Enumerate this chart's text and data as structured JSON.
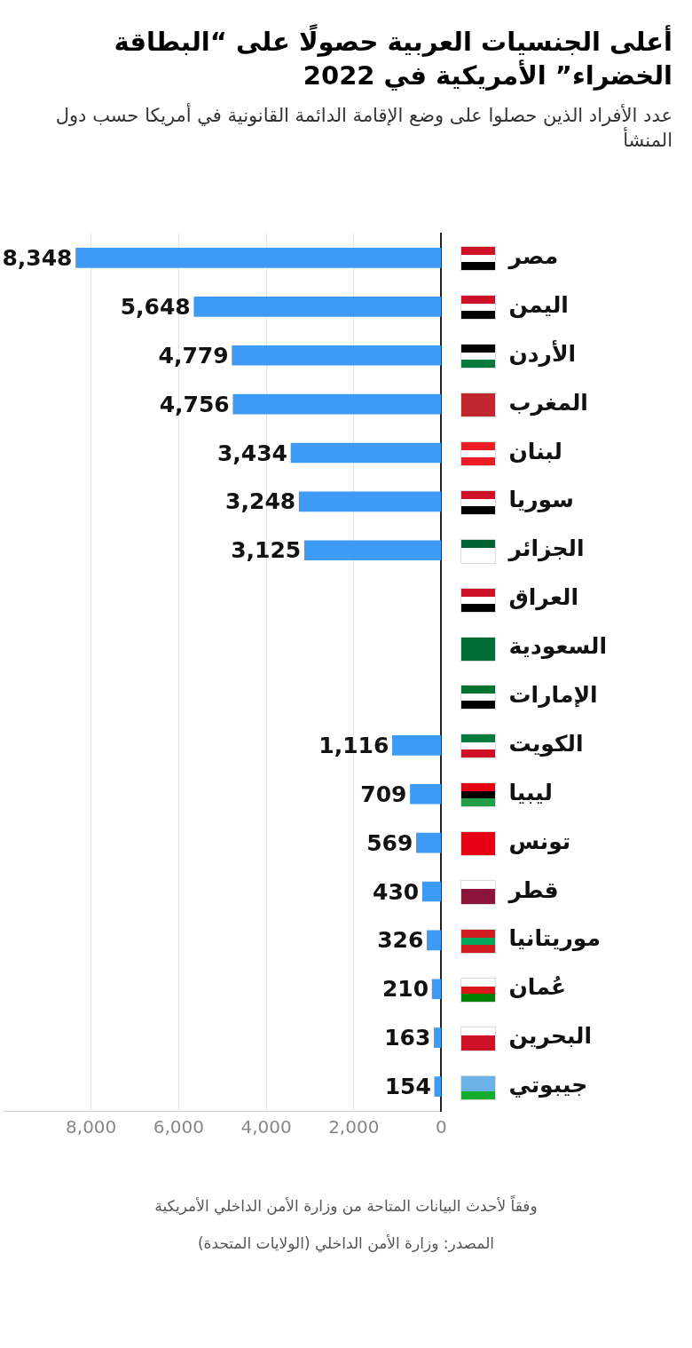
{
  "chart_data": {
    "type": "bar",
    "orientation": "horizontal",
    "title": "أعلى الجنسيات العربية حصولًا على “البطاقة الخضراء” الأمريكية في 2022",
    "subtitle": "عدد الأفراد الذين حصلوا على وضع الإقامة الدائمة القانونية في أمريكا حسب دول المنشأ",
    "categories": [
      "مصر",
      "اليمن",
      "الأردن",
      "المغرب",
      "لبنان",
      "سوريا",
      "الجزائر",
      "العراق",
      "السعودية",
      "الإمارات",
      "الكويت",
      "ليبيا",
      "تونس",
      "قطر",
      "موريتانيا",
      "عُمان",
      "البحرين",
      "جيبوتي"
    ],
    "values": [
      8348,
      5648,
      4779,
      4756,
      3434,
      3248,
      3125,
      null,
      null,
      null,
      1116,
      709,
      569,
      430,
      326,
      210,
      163,
      154
    ],
    "color": "#3d9af5",
    "xlim": [
      10000,
      0
    ],
    "xticks": [
      {
        "value": 8000,
        "label": "8,000"
      },
      {
        "value": 6000,
        "label": "6,000"
      },
      {
        "value": 4000,
        "label": "4,000"
      },
      {
        "value": 2000,
        "label": "2,000"
      },
      0
    ],
    "value_labels": [
      "8,348",
      "5,648",
      "4,779",
      "4,756",
      "3,434",
      "3,248",
      "3,125",
      null,
      null,
      null,
      "1,116",
      "709",
      "569",
      "430",
      "326",
      "210",
      "163",
      "154"
    ],
    "grid": "x",
    "legend": false,
    "annotations": [
      "وفقاً لأحدث البيانات المتاحة من وزارة الأمن الداخلي الأمريكية",
      "المصدر: وزارة الأمن الداخلي (الولايات المتحدة)"
    ]
  }
}
